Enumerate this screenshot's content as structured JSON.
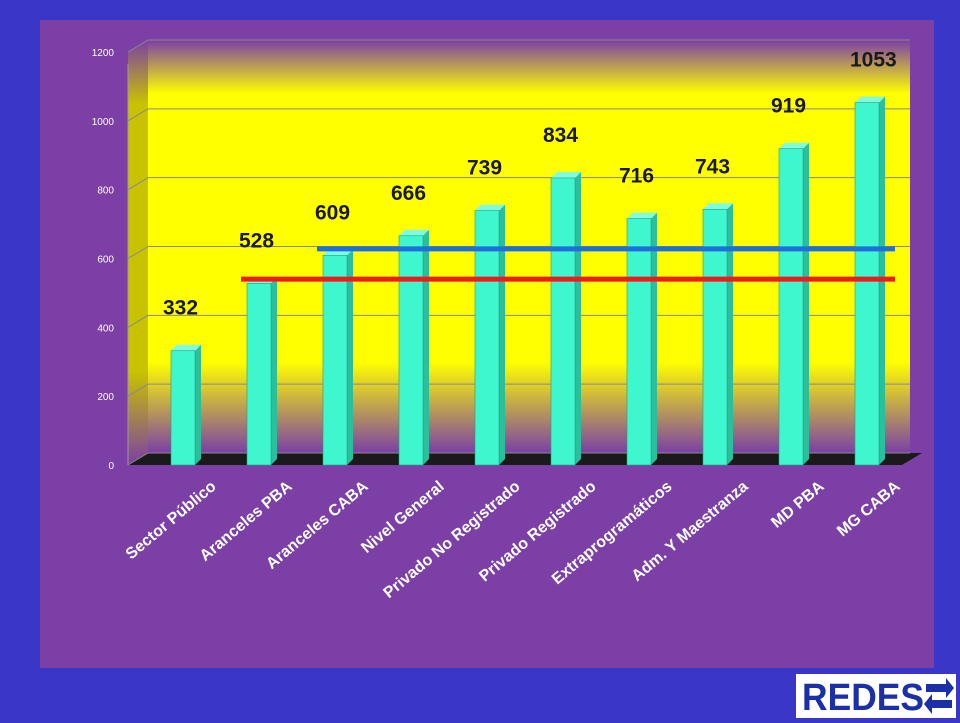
{
  "chart_data": {
    "type": "bar",
    "categories": [
      "Sector Público",
      "Aranceles PBA",
      "Aranceles CABA",
      "Nivel General",
      "Privado No Registrado",
      "Privado Registrado",
      "Extraprogramáticos",
      "Adm. Y Maestranza",
      "MD PBA",
      "MG CABA"
    ],
    "values": [
      332,
      528,
      609,
      666,
      739,
      834,
      716,
      743,
      919,
      1053
    ],
    "data_labels": [
      "332",
      "528",
      "609",
      "666",
      "739",
      "834",
      "716",
      "743",
      "919",
      "1053"
    ],
    "yticks": [
      "0",
      "200",
      "400",
      "600",
      "800",
      "1000",
      "1200"
    ],
    "ylim": [
      0,
      1200
    ],
    "grid": true,
    "reference_lines": [
      {
        "color": "#1e6fd9",
        "value": 628,
        "from_index": 2,
        "to_index": 9
      },
      {
        "color": "#ee1b1b",
        "value": 540,
        "from_index": 1,
        "to_index": 9
      }
    ],
    "colors": {
      "bar": "#3ff7cf",
      "plot_band": "#ffff00",
      "background": "#7b3fa6",
      "page": "#3a36c8"
    }
  },
  "logo": {
    "text": "REDES"
  }
}
